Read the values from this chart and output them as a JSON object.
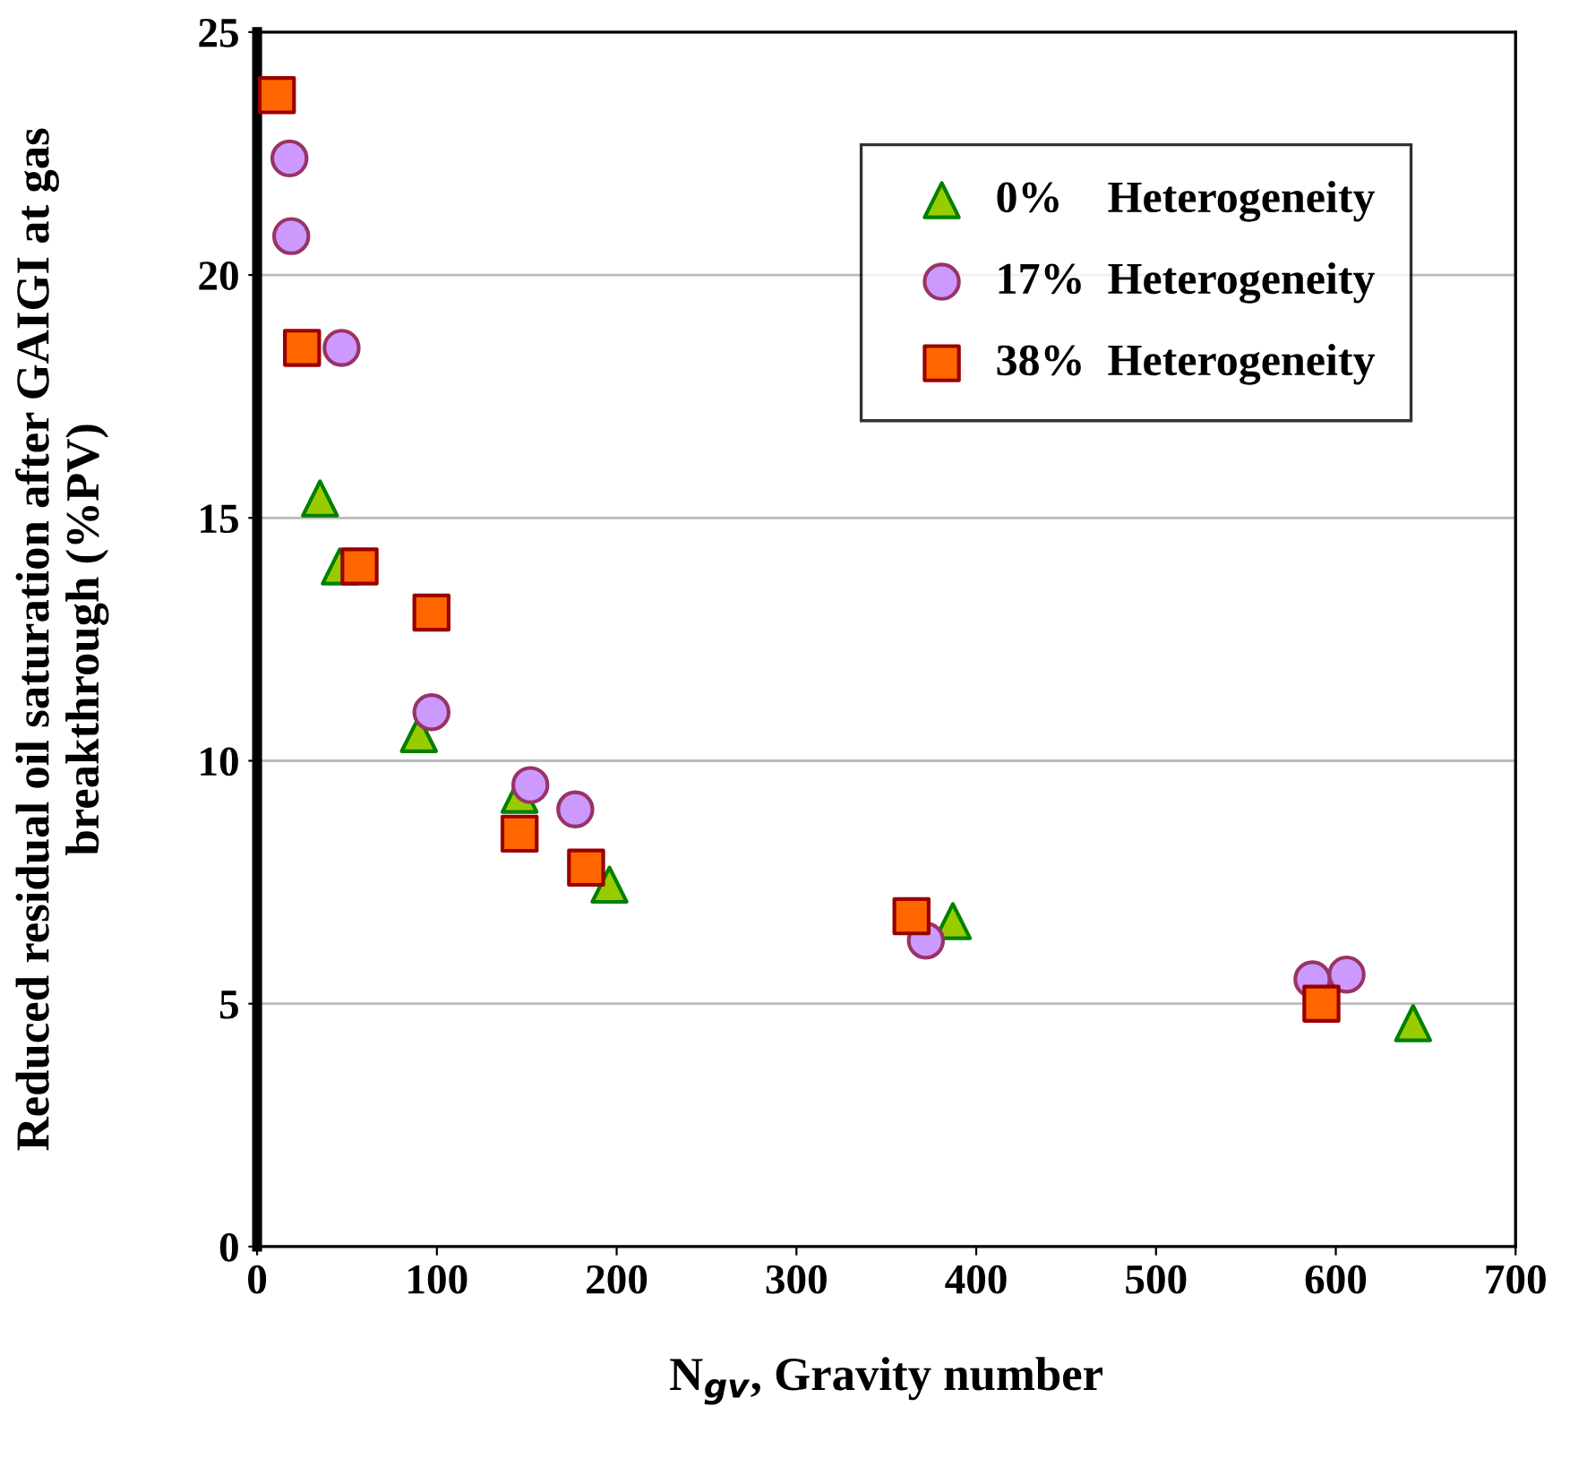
{
  "chart_data": {
    "type": "scatter",
    "xlabel": "N$_{gv}$, Gravity number",
    "ylabel": "Reduced residual oil saturation after GAIGI at gas breakthrough (%PV)",
    "xlim": [
      0,
      700
    ],
    "xticks": [
      0,
      100,
      200,
      300,
      400,
      500,
      600,
      700
    ],
    "ylim": [
      0,
      25
    ],
    "yticks": [
      0,
      5,
      10,
      15,
      20,
      25
    ],
    "grid": "y",
    "legend": "top right",
    "series": [
      {
        "name": "0%    Heterogeneity",
        "color": "#99cc00",
        "marker": "triangle",
        "x": [
          35,
          46,
          90,
          146,
          196,
          387,
          643
        ],
        "values": [
          15.4,
          14.0,
          10.55,
          9.3,
          7.45,
          6.7,
          4.6
        ]
      },
      {
        "name": "17%  Heterogeneity",
        "color": "#cc99ff",
        "marker": "circle",
        "x": [
          18,
          19,
          47,
          97,
          152,
          177,
          372,
          587,
          606
        ],
        "values": [
          22.4,
          20.8,
          18.5,
          11.0,
          9.5,
          9.0,
          6.3,
          5.5,
          5.6
        ]
      },
      {
        "name": "38%  Heterogeneity",
        "color": "#ff6600",
        "marker": "square",
        "x": [
          11,
          25,
          57,
          97,
          146,
          183,
          364,
          592
        ],
        "values": [
          23.7,
          18.5,
          14.0,
          13.05,
          8.5,
          7.8,
          6.8,
          5.0
        ]
      }
    ]
  }
}
